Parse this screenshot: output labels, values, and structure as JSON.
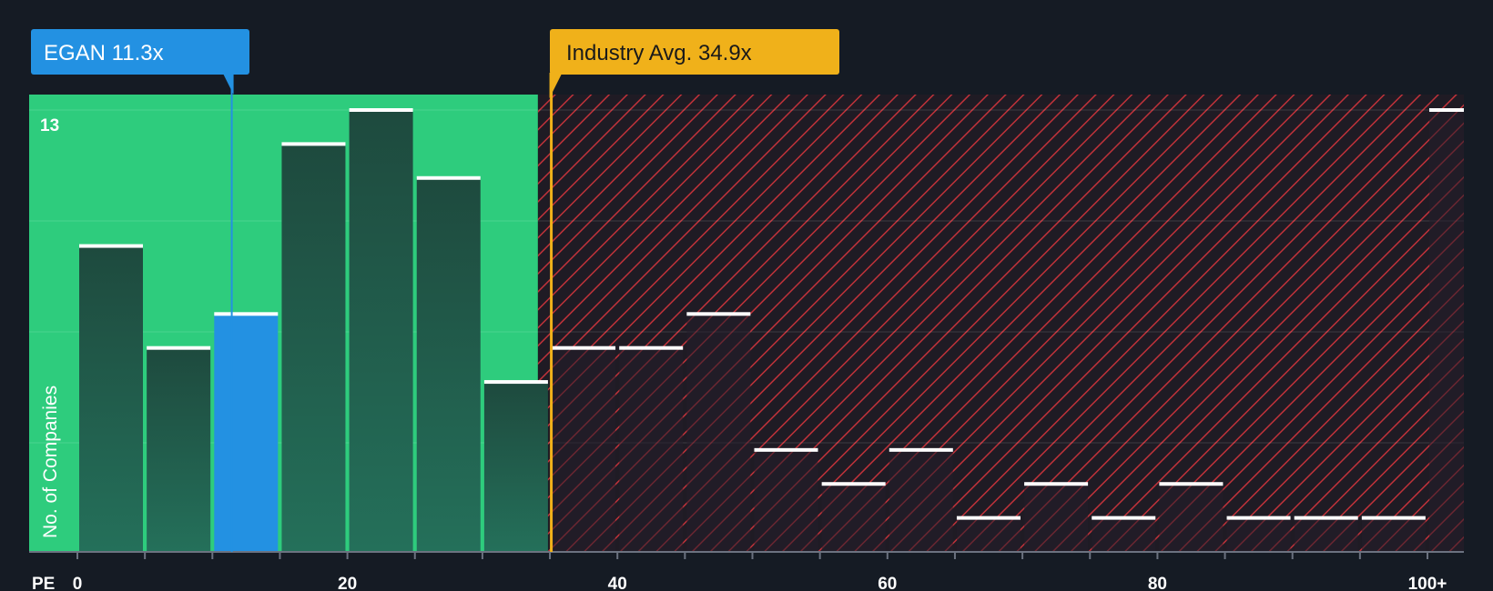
{
  "chart_data": {
    "type": "bar",
    "title": "",
    "xlabel": "PE",
    "ylabel": "No. of Companies",
    "x_tick_labels": [
      "0",
      "20",
      "40",
      "60",
      "80",
      "100+"
    ],
    "x_tick_values": [
      0,
      20,
      40,
      60,
      80,
      100
    ],
    "y_max_label": "13",
    "ylim": [
      0,
      13.5
    ],
    "bin_width": 5,
    "bins": [
      {
        "start": 0,
        "count": 9
      },
      {
        "start": 5,
        "count": 6
      },
      {
        "start": 10,
        "count": 7
      },
      {
        "start": 15,
        "count": 12
      },
      {
        "start": 20,
        "count": 13
      },
      {
        "start": 25,
        "count": 11
      },
      {
        "start": 30,
        "count": 5
      },
      {
        "start": 35,
        "count": 6
      },
      {
        "start": 40,
        "count": 6
      },
      {
        "start": 45,
        "count": 7
      },
      {
        "start": 50,
        "count": 3
      },
      {
        "start": 55,
        "count": 2
      },
      {
        "start": 60,
        "count": 3
      },
      {
        "start": 65,
        "count": 1
      },
      {
        "start": 70,
        "count": 2
      },
      {
        "start": 75,
        "count": 1
      },
      {
        "start": 80,
        "count": 2
      },
      {
        "start": 85,
        "count": 1
      },
      {
        "start": 90,
        "count": 1
      },
      {
        "start": 95,
        "count": 1
      },
      {
        "start": 100,
        "count": 13
      }
    ],
    "company": {
      "label": "EGAN 11.3x",
      "value": 11.3
    },
    "industry": {
      "label": "Industry Avg. 34.9x",
      "value": 34.9
    },
    "fair_zone_end": 33.5,
    "colors": {
      "background": "#151b24",
      "fair_zone": "#2ecc7d",
      "bar": "#1f4a3f",
      "highlight_bar": "#2391e2",
      "overvalued_stripe": "#c0323a",
      "company_callout": "#2391e2",
      "industry_callout": "#f0b11a",
      "axis_text": "#ffffff"
    }
  }
}
